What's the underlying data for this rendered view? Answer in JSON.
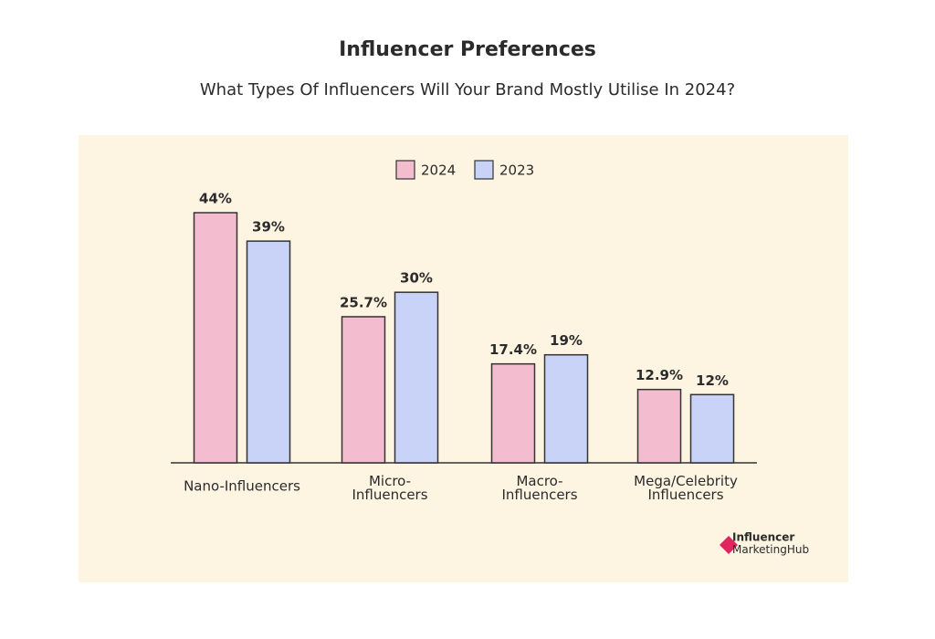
{
  "chart_data": {
    "type": "bar",
    "title": "Influencer Preferences",
    "subtitle": "What Types Of Influencers Will Your Brand Mostly Utilise In 2024?",
    "categories": [
      "Nano-Influencers",
      "Micro-\nInfluencers",
      "Macro-\nInfluencers",
      "Mega/Celebrity\nInfluencers"
    ],
    "series": [
      {
        "name": "2024",
        "color": "#f4bccf",
        "values": [
          44,
          25.7,
          17.4,
          12.9
        ],
        "value_labels": [
          "44%",
          "25.7%",
          "17.4%",
          "12.9%"
        ]
      },
      {
        "name": "2023",
        "color": "#c9d3f7",
        "values": [
          39,
          30,
          19,
          12
        ],
        "value_labels": [
          "39%",
          "30%",
          "19%",
          "12%"
        ]
      }
    ],
    "logo": {
      "line1": "Influencer",
      "line2a": "Marketing",
      "line2b": "Hub"
    }
  }
}
